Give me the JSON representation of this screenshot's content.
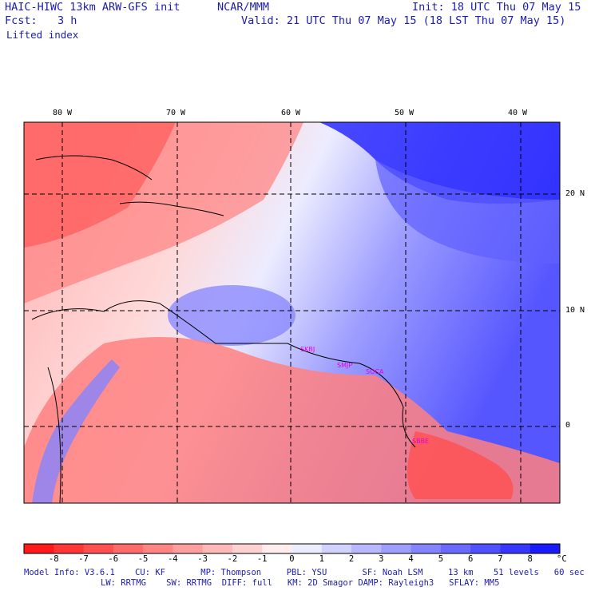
{
  "header": {
    "title_left": "HAIC-HIWC 13km ARW-GFS init",
    "org": "NCAR/MMM",
    "init": "Init: 18 UTC Thu 07 May 15",
    "fcst_label": "Fcst:",
    "fcst_value": "3 h",
    "valid": "Valid: 21 UTC Thu 07 May 15 (18 LST Thu 07 May 15)",
    "field": "Lifted index"
  },
  "lon_labels": [
    "80 W",
    "70 W",
    "60 W",
    "50 W",
    "40 W"
  ],
  "lat_labels": [
    "20 N",
    "10 N",
    "0"
  ],
  "stations": [
    "SKBJ",
    "SMJP",
    "SOCA",
    "SBBE"
  ],
  "colorbar": {
    "labels": [
      "-8",
      "-7",
      "-6",
      "-5",
      "-4",
      "-3",
      "-2",
      "-1",
      "0",
      "1",
      "2",
      "3",
      "4",
      "5",
      "6",
      "7",
      "8"
    ],
    "unit": "°C",
    "colors": [
      "#ff1a1a",
      "#ff3636",
      "#ff5050",
      "#ff6a6a",
      "#ff8484",
      "#ff9e9e",
      "#ffb8b8",
      "#ffd2d2",
      "#ffecec",
      "#ececff",
      "#d2d2ff",
      "#b8b8ff",
      "#9e9eff",
      "#8484ff",
      "#6a6aff",
      "#5050ff",
      "#3636ff",
      "#1a1aff"
    ]
  },
  "footer": {
    "line1": "Model Info: V3.6.1    CU: KF       MP: Thompson     PBL: YSU       SF: Noah LSM     13 km    51 levels   60 sec",
    "line2": "LW: RRTMG    SW: RRTMG  DIFF: full   KM: 2D Smagor DAMP: Rayleigh3   SFLAY: MM5"
  }
}
